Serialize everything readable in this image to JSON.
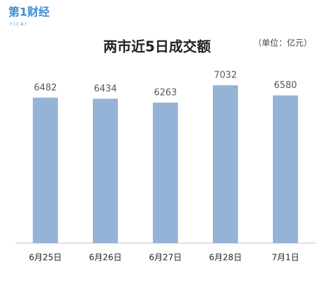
{
  "logo": {
    "text": "第1财经",
    "subtext": "Y I C A I"
  },
  "chart_data": {
    "type": "bar",
    "title": "两市近5日成交额",
    "subtitle": "（单位：亿元）",
    "categories": [
      "6月25日",
      "6月26日",
      "6月27日",
      "6月28日",
      "7月1日"
    ],
    "values": [
      6482,
      6434,
      6263,
      7032,
      6580
    ],
    "color": "#95b3d7",
    "ylim": [
      0,
      8000
    ]
  }
}
